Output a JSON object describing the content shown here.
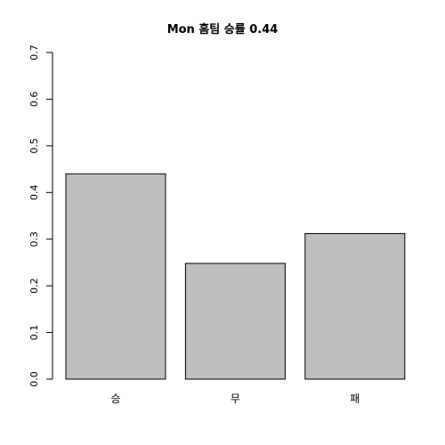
{
  "chart_data": {
    "type": "bar",
    "title": "Mon 홈팀 승률 0.44",
    "categories": [
      "승",
      "무",
      "패"
    ],
    "values": [
      0.44,
      0.248,
      0.312
    ],
    "ylim": [
      0,
      0.7
    ],
    "yticks": [
      "0.0",
      "0.1",
      "0.2",
      "0.3",
      "0.4",
      "0.5",
      "0.6",
      "0.7"
    ],
    "xlabel": "",
    "ylabel": "",
    "grid": false,
    "bar_color": "#bebebe",
    "bar_border_color": "#000000"
  }
}
